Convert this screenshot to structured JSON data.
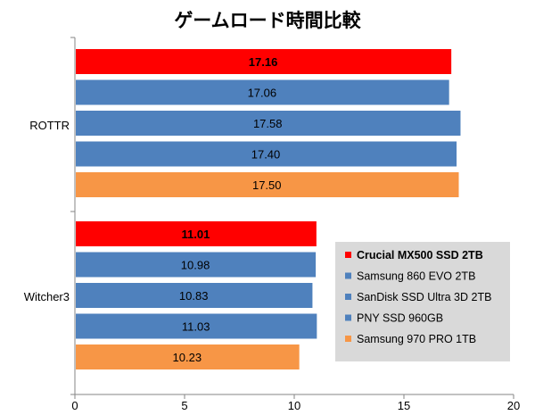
{
  "chart_data": {
    "type": "bar",
    "orientation": "horizontal",
    "title": "ゲームロード時間比較",
    "categories": [
      "ROTTR",
      "Witcher3"
    ],
    "series": [
      {
        "name": "Crucial MX500 SSD 2TB",
        "color": "#ff0000",
        "values": [
          17.16,
          11.01
        ],
        "labels": [
          "17.16",
          "11.01"
        ],
        "bold": true
      },
      {
        "name": "Samsung 860 EVO 2TB",
        "color": "#4f81bd",
        "values": [
          17.06,
          10.98
        ],
        "labels": [
          "17.06",
          "10.98"
        ],
        "bold": false
      },
      {
        "name": "SanDisk SSD Ultra 3D 2TB",
        "color": "#4f81bd",
        "values": [
          17.58,
          10.83
        ],
        "labels": [
          "17.58",
          "10.83"
        ],
        "bold": false
      },
      {
        "name": "PNY SSD 960GB",
        "color": "#4f81bd",
        "values": [
          17.4,
          11.03
        ],
        "labels": [
          "17.40",
          "11.03"
        ],
        "bold": false
      },
      {
        "name": "Samsung 970 PRO 1TB",
        "color": "#f79646",
        "values": [
          17.5,
          10.23
        ],
        "labels": [
          "17.50",
          "10.23"
        ],
        "bold": false
      }
    ],
    "xlim": [
      0,
      20
    ],
    "xticks": [
      "0",
      "5",
      "10",
      "15",
      "20"
    ],
    "grid": false,
    "legend_position": "bottom-right",
    "legend_background": "#d9d9d9"
  }
}
